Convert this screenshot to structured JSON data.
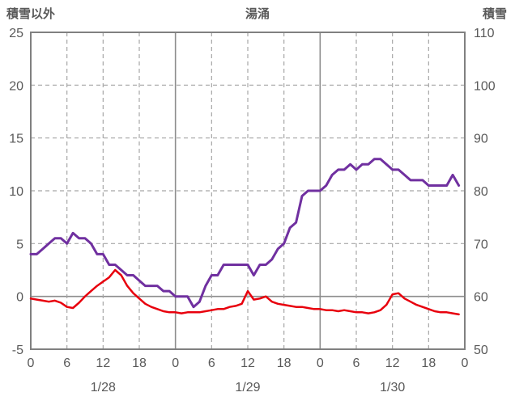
{
  "chart_data": {
    "type": "line",
    "title": "湯涌",
    "left_axis": {
      "label": "積雪以外",
      "min": -5,
      "max": 25,
      "tick_step": 5,
      "ticks": [
        -5,
        0,
        5,
        10,
        15,
        20,
        25
      ]
    },
    "right_axis": {
      "label": "積雪",
      "min": 50,
      "max": 110,
      "tick_step": 10,
      "ticks": [
        50,
        60,
        70,
        80,
        90,
        100,
        110
      ]
    },
    "x_axis": {
      "min": 0,
      "max": 72,
      "tick_step_hours": 6,
      "hour_tick_labels": [
        "0",
        "6",
        "12",
        "18",
        "0",
        "6",
        "12",
        "18",
        "0",
        "6",
        "12",
        "18",
        "0"
      ],
      "date_labels": [
        {
          "label": "1/28",
          "hour": 12
        },
        {
          "label": "1/29",
          "hour": 36
        },
        {
          "label": "1/30",
          "hour": 60
        }
      ],
      "day_boundary_hours": [
        24,
        48
      ]
    },
    "grid": {
      "dashed_color": "#a6a6a6",
      "solid_color": "#8c8c8c",
      "frame_color": "#808080"
    },
    "series": [
      {
        "name": "積雪以外",
        "axis": "left",
        "color": "#e8000d",
        "width": 2.5,
        "x": [
          0,
          1,
          2,
          3,
          4,
          5,
          6,
          7,
          8,
          9,
          10,
          11,
          12,
          13,
          14,
          15,
          16,
          17,
          18,
          19,
          20,
          21,
          22,
          23,
          24,
          25,
          26,
          27,
          28,
          29,
          30,
          31,
          32,
          33,
          34,
          35,
          36,
          37,
          38,
          39,
          40,
          41,
          42,
          43,
          44,
          45,
          46,
          47,
          48,
          49,
          50,
          51,
          52,
          53,
          54,
          55,
          56,
          57,
          58,
          59,
          60,
          61,
          62,
          63,
          64,
          65,
          66,
          67,
          68,
          69,
          70,
          71
        ],
        "values": [
          -0.2,
          -0.3,
          -0.4,
          -0.5,
          -0.4,
          -0.6,
          -1.0,
          -1.1,
          -0.6,
          0.0,
          0.5,
          1.0,
          1.4,
          1.8,
          2.5,
          2.0,
          1.0,
          0.3,
          -0.2,
          -0.7,
          -1.0,
          -1.2,
          -1.4,
          -1.5,
          -1.5,
          -1.6,
          -1.5,
          -1.5,
          -1.5,
          -1.4,
          -1.3,
          -1.2,
          -1.2,
          -1.0,
          -0.9,
          -0.7,
          0.5,
          -0.3,
          -0.2,
          0.0,
          -0.5,
          -0.7,
          -0.8,
          -0.9,
          -1.0,
          -1.0,
          -1.1,
          -1.2,
          -1.2,
          -1.3,
          -1.3,
          -1.4,
          -1.3,
          -1.4,
          -1.5,
          -1.5,
          -1.6,
          -1.5,
          -1.3,
          -0.8,
          0.2,
          0.3,
          -0.2,
          -0.5,
          -0.8,
          -1.0,
          -1.2,
          -1.4,
          -1.5,
          -1.5,
          -1.6,
          -1.7
        ]
      },
      {
        "name": "積雪",
        "axis": "right",
        "color": "#7030a0",
        "width": 3,
        "x": [
          0,
          1,
          2,
          3,
          4,
          5,
          6,
          7,
          8,
          9,
          10,
          11,
          12,
          13,
          14,
          15,
          16,
          17,
          18,
          19,
          20,
          21,
          22,
          23,
          24,
          25,
          26,
          27,
          28,
          29,
          30,
          31,
          32,
          33,
          34,
          35,
          36,
          37,
          38,
          39,
          40,
          41,
          42,
          43,
          44,
          45,
          46,
          47,
          48,
          49,
          50,
          51,
          52,
          53,
          54,
          55,
          56,
          57,
          58,
          59,
          60,
          61,
          62,
          63,
          64,
          65,
          66,
          67,
          68,
          69,
          70,
          71
        ],
        "values": [
          68,
          68,
          69,
          70,
          71,
          71,
          70,
          72,
          71,
          71,
          70,
          68,
          68,
          66,
          66,
          65,
          64,
          64,
          63,
          62,
          62,
          62,
          61,
          61,
          60,
          60,
          60,
          58,
          59,
          62,
          64,
          64,
          66,
          66,
          66,
          66,
          66,
          64,
          66,
          66,
          67,
          69,
          70,
          73,
          74,
          79,
          80,
          80,
          80,
          81,
          83,
          84,
          84,
          85,
          84,
          85,
          85,
          86,
          86,
          85,
          84,
          84,
          83,
          82,
          82,
          82,
          81,
          81,
          81,
          81,
          83,
          81
        ]
      }
    ]
  }
}
